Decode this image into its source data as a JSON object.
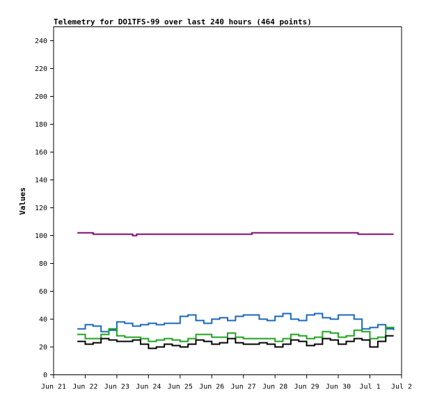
{
  "chart_data": {
    "type": "line",
    "title": "Telemetry for DO1TFS-99 over last 240 hours (464 points)",
    "xlabel": "",
    "ylabel": "Values",
    "x_axis": {
      "type": "date",
      "min": "Jun 21",
      "max": "Jul 2",
      "ticks": [
        "Jun 21",
        "Jun 22",
        "Jun 23",
        "Jun 24",
        "Jun 25",
        "Jun 26",
        "Jun 27",
        "Jun 28",
        "Jun 29",
        "Jun 30",
        "Jul 1",
        "Jul 2"
      ]
    },
    "ylim": [
      0,
      250
    ],
    "y_ticks": [
      0,
      20,
      40,
      60,
      80,
      100,
      120,
      140,
      160,
      180,
      200,
      220,
      240
    ],
    "grid": false,
    "legend": "none",
    "series": [
      {
        "color": "#7a0a6e",
        "points": [
          [
            "Jun 21 18:00",
            102
          ],
          [
            "Jun 22 06:00",
            101
          ],
          [
            "Jun 23 12:00",
            100
          ],
          [
            "Jun 23 15:00",
            101
          ],
          [
            "Jun 27 06:00",
            101
          ],
          [
            "Jun 27 06:30",
            102
          ],
          [
            "Jun 30 12:00",
            102
          ],
          [
            "Jun 30 15:00",
            101
          ],
          [
            "Jul 1 18:00",
            101
          ]
        ]
      },
      {
        "color": "#1a66b8",
        "points": [
          [
            "Jun 21 18:00",
            33
          ],
          [
            "Jun 22 00:00",
            36
          ],
          [
            "Jun 22 06:00",
            35
          ],
          [
            "Jun 22 12:00",
            31
          ],
          [
            "Jun 22 18:00",
            32
          ],
          [
            "Jun 23 00:00",
            38
          ],
          [
            "Jun 23 06:00",
            37
          ],
          [
            "Jun 23 12:00",
            35
          ],
          [
            "Jun 23 18:00",
            36
          ],
          [
            "Jun 24 00:00",
            37
          ],
          [
            "Jun 24 06:00",
            36
          ],
          [
            "Jun 24 12:00",
            37
          ],
          [
            "Jun 25 00:00",
            42
          ],
          [
            "Jun 25 06:00",
            43
          ],
          [
            "Jun 25 12:00",
            39
          ],
          [
            "Jun 25 18:00",
            37
          ],
          [
            "Jun 26 00:00",
            40
          ],
          [
            "Jun 26 06:00",
            41
          ],
          [
            "Jun 26 12:00",
            39
          ],
          [
            "Jun 26 18:00",
            42
          ],
          [
            "Jun 27 00:00",
            43
          ],
          [
            "Jun 27 06:00",
            43
          ],
          [
            "Jun 27 12:00",
            40
          ],
          [
            "Jun 27 18:00",
            39
          ],
          [
            "Jun 28 00:00",
            42
          ],
          [
            "Jun 28 06:00",
            44
          ],
          [
            "Jun 28 12:00",
            40
          ],
          [
            "Jun 28 18:00",
            39
          ],
          [
            "Jun 29 00:00",
            43
          ],
          [
            "Jun 29 06:00",
            44
          ],
          [
            "Jun 29 12:00",
            41
          ],
          [
            "Jun 29 18:00",
            40
          ],
          [
            "Jun 30 00:00",
            43
          ],
          [
            "Jun 30 06:00",
            43
          ],
          [
            "Jun 30 12:00",
            40
          ],
          [
            "Jun 30 18:00",
            33
          ],
          [
            "Jul 1 00:00",
            34
          ],
          [
            "Jul 1 06:00",
            36
          ],
          [
            "Jul 1 12:00",
            33
          ],
          [
            "Jul 1 18:00",
            32
          ]
        ]
      },
      {
        "color": "#1ea01e",
        "points": [
          [
            "Jun 21 18:00",
            29
          ],
          [
            "Jun 22 00:00",
            26
          ],
          [
            "Jun 22 06:00",
            26
          ],
          [
            "Jun 22 12:00",
            29
          ],
          [
            "Jun 22 18:00",
            33
          ],
          [
            "Jun 23 00:00",
            28
          ],
          [
            "Jun 23 06:00",
            27
          ],
          [
            "Jun 23 12:00",
            27
          ],
          [
            "Jun 23 18:00",
            26
          ],
          [
            "Jun 24 00:00",
            24
          ],
          [
            "Jun 24 06:00",
            25
          ],
          [
            "Jun 24 12:00",
            26
          ],
          [
            "Jun 24 18:00",
            25
          ],
          [
            "Jun 25 00:00",
            24
          ],
          [
            "Jun 25 06:00",
            26
          ],
          [
            "Jun 25 12:00",
            29
          ],
          [
            "Jun 25 18:00",
            29
          ],
          [
            "Jun 26 00:00",
            27
          ],
          [
            "Jun 26 06:00",
            27
          ],
          [
            "Jun 26 12:00",
            30
          ],
          [
            "Jun 26 18:00",
            27
          ],
          [
            "Jun 27 00:00",
            26
          ],
          [
            "Jun 27 06:00",
            26
          ],
          [
            "Jun 27 12:00",
            26
          ],
          [
            "Jun 27 18:00",
            26
          ],
          [
            "Jun 28 00:00",
            24
          ],
          [
            "Jun 28 06:00",
            26
          ],
          [
            "Jun 28 12:00",
            29
          ],
          [
            "Jun 28 18:00",
            28
          ],
          [
            "Jun 29 00:00",
            26
          ],
          [
            "Jun 29 06:00",
            27
          ],
          [
            "Jun 29 12:00",
            31
          ],
          [
            "Jun 29 18:00",
            30
          ],
          [
            "Jun 30 00:00",
            27
          ],
          [
            "Jun 30 06:00",
            28
          ],
          [
            "Jun 30 12:00",
            32
          ],
          [
            "Jun 30 18:00",
            31
          ],
          [
            "Jul 1 00:00",
            26
          ],
          [
            "Jul 1 06:00",
            27
          ],
          [
            "Jul 1 12:00",
            34
          ],
          [
            "Jul 1 18:00",
            33
          ]
        ]
      },
      {
        "color": "#000000",
        "points": [
          [
            "Jun 21 18:00",
            24
          ],
          [
            "Jun 22 00:00",
            22
          ],
          [
            "Jun 22 06:00",
            23
          ],
          [
            "Jun 22 12:00",
            26
          ],
          [
            "Jun 22 18:00",
            25
          ],
          [
            "Jun 23 00:00",
            24
          ],
          [
            "Jun 23 06:00",
            24
          ],
          [
            "Jun 23 12:00",
            25
          ],
          [
            "Jun 23 18:00",
            22
          ],
          [
            "Jun 24 00:00",
            19
          ],
          [
            "Jun 24 06:00",
            20
          ],
          [
            "Jun 24 12:00",
            22
          ],
          [
            "Jun 24 18:00",
            21
          ],
          [
            "Jun 25 00:00",
            20
          ],
          [
            "Jun 25 06:00",
            22
          ],
          [
            "Jun 25 12:00",
            25
          ],
          [
            "Jun 25 18:00",
            24
          ],
          [
            "Jun 26 00:00",
            22
          ],
          [
            "Jun 26 06:00",
            23
          ],
          [
            "Jun 26 12:00",
            26
          ],
          [
            "Jun 26 18:00",
            23
          ],
          [
            "Jun 27 00:00",
            22
          ],
          [
            "Jun 27 06:00",
            22
          ],
          [
            "Jun 27 12:00",
            23
          ],
          [
            "Jun 27 18:00",
            22
          ],
          [
            "Jun 28 00:00",
            20
          ],
          [
            "Jun 28 06:00",
            22
          ],
          [
            "Jun 28 12:00",
            25
          ],
          [
            "Jun 28 18:00",
            24
          ],
          [
            "Jun 29 00:00",
            21
          ],
          [
            "Jun 29 06:00",
            22
          ],
          [
            "Jun 29 12:00",
            26
          ],
          [
            "Jun 29 18:00",
            25
          ],
          [
            "Jun 30 00:00",
            22
          ],
          [
            "Jun 30 06:00",
            24
          ],
          [
            "Jun 30 12:00",
            26
          ],
          [
            "Jun 30 18:00",
            25
          ],
          [
            "Jul 1 00:00",
            20
          ],
          [
            "Jul 1 06:00",
            24
          ],
          [
            "Jul 1 12:00",
            28
          ],
          [
            "Jul 1 18:00",
            28
          ]
        ]
      }
    ]
  }
}
